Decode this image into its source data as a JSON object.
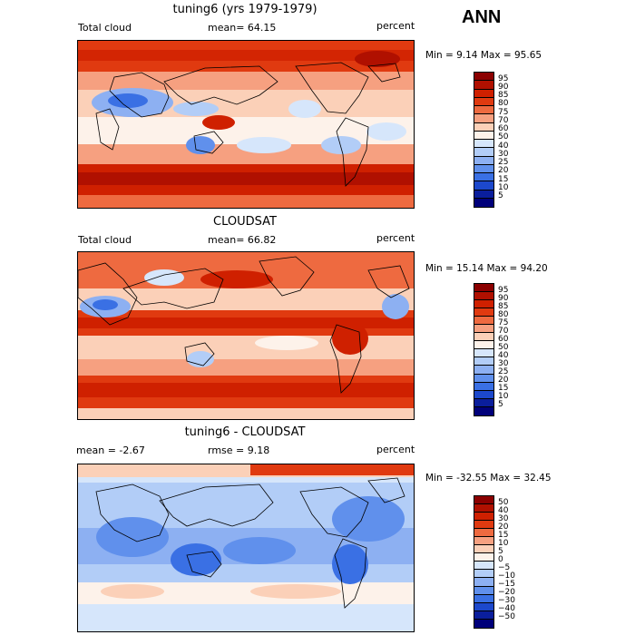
{
  "season": "ANN",
  "panels": [
    {
      "title": "tuning6 (yrs 1979-1979)",
      "left_label": "Total cloud",
      "center_label": "mean=  64.15",
      "right_label": "percent",
      "minmax": "Min =   9.14 Max =  95.65",
      "legend_labels": [
        "95",
        "90",
        "85",
        "80",
        "75",
        "70",
        "60",
        "50",
        "40",
        "30",
        "25",
        "20",
        "15",
        "10",
        "5"
      ]
    },
    {
      "title": "CLOUDSAT",
      "left_label": "Total cloud",
      "center_label": "mean=  66.82",
      "right_label": "percent",
      "minmax": "Min =  15.14 Max =  94.20",
      "legend_labels": [
        "95",
        "90",
        "85",
        "80",
        "75",
        "70",
        "60",
        "50",
        "40",
        "30",
        "25",
        "20",
        "15",
        "10",
        "5"
      ]
    },
    {
      "title": "tuning6 - CLOUDSAT",
      "left_label": "mean =  -2.67",
      "center_label": "rmse =   9.18",
      "right_label": "percent",
      "minmax": "Min = -32.55 Max =  32.45",
      "legend_labels": [
        "50",
        "40",
        "30",
        "20",
        "15",
        "10",
        "5",
        "0",
        "−5",
        "−10",
        "−15",
        "−20",
        "−30",
        "−40",
        "−50"
      ]
    }
  ],
  "colors": {
    "abs_scale": [
      "#8b0000",
      "#b01000",
      "#cf2000",
      "#e03a10",
      "#ee6a40",
      "#f6a080",
      "#fbd0b8",
      "#fdf2ea",
      "#d6e6fb",
      "#b2cdf7",
      "#8db0f2",
      "#6090ec",
      "#3a70e4",
      "#1c48cc",
      "#0a1e9c",
      "#00007a"
    ],
    "diff_scale": [
      "#8b0000",
      "#b01000",
      "#cf2000",
      "#e03a10",
      "#ee6a40",
      "#f6a080",
      "#fbd0b8",
      "#fdf2ea",
      "#d6e6fb",
      "#b2cdf7",
      "#8db0f2",
      "#6090ec",
      "#3a70e4",
      "#1c48cc",
      "#0a1e9c",
      "#00007a"
    ]
  }
}
